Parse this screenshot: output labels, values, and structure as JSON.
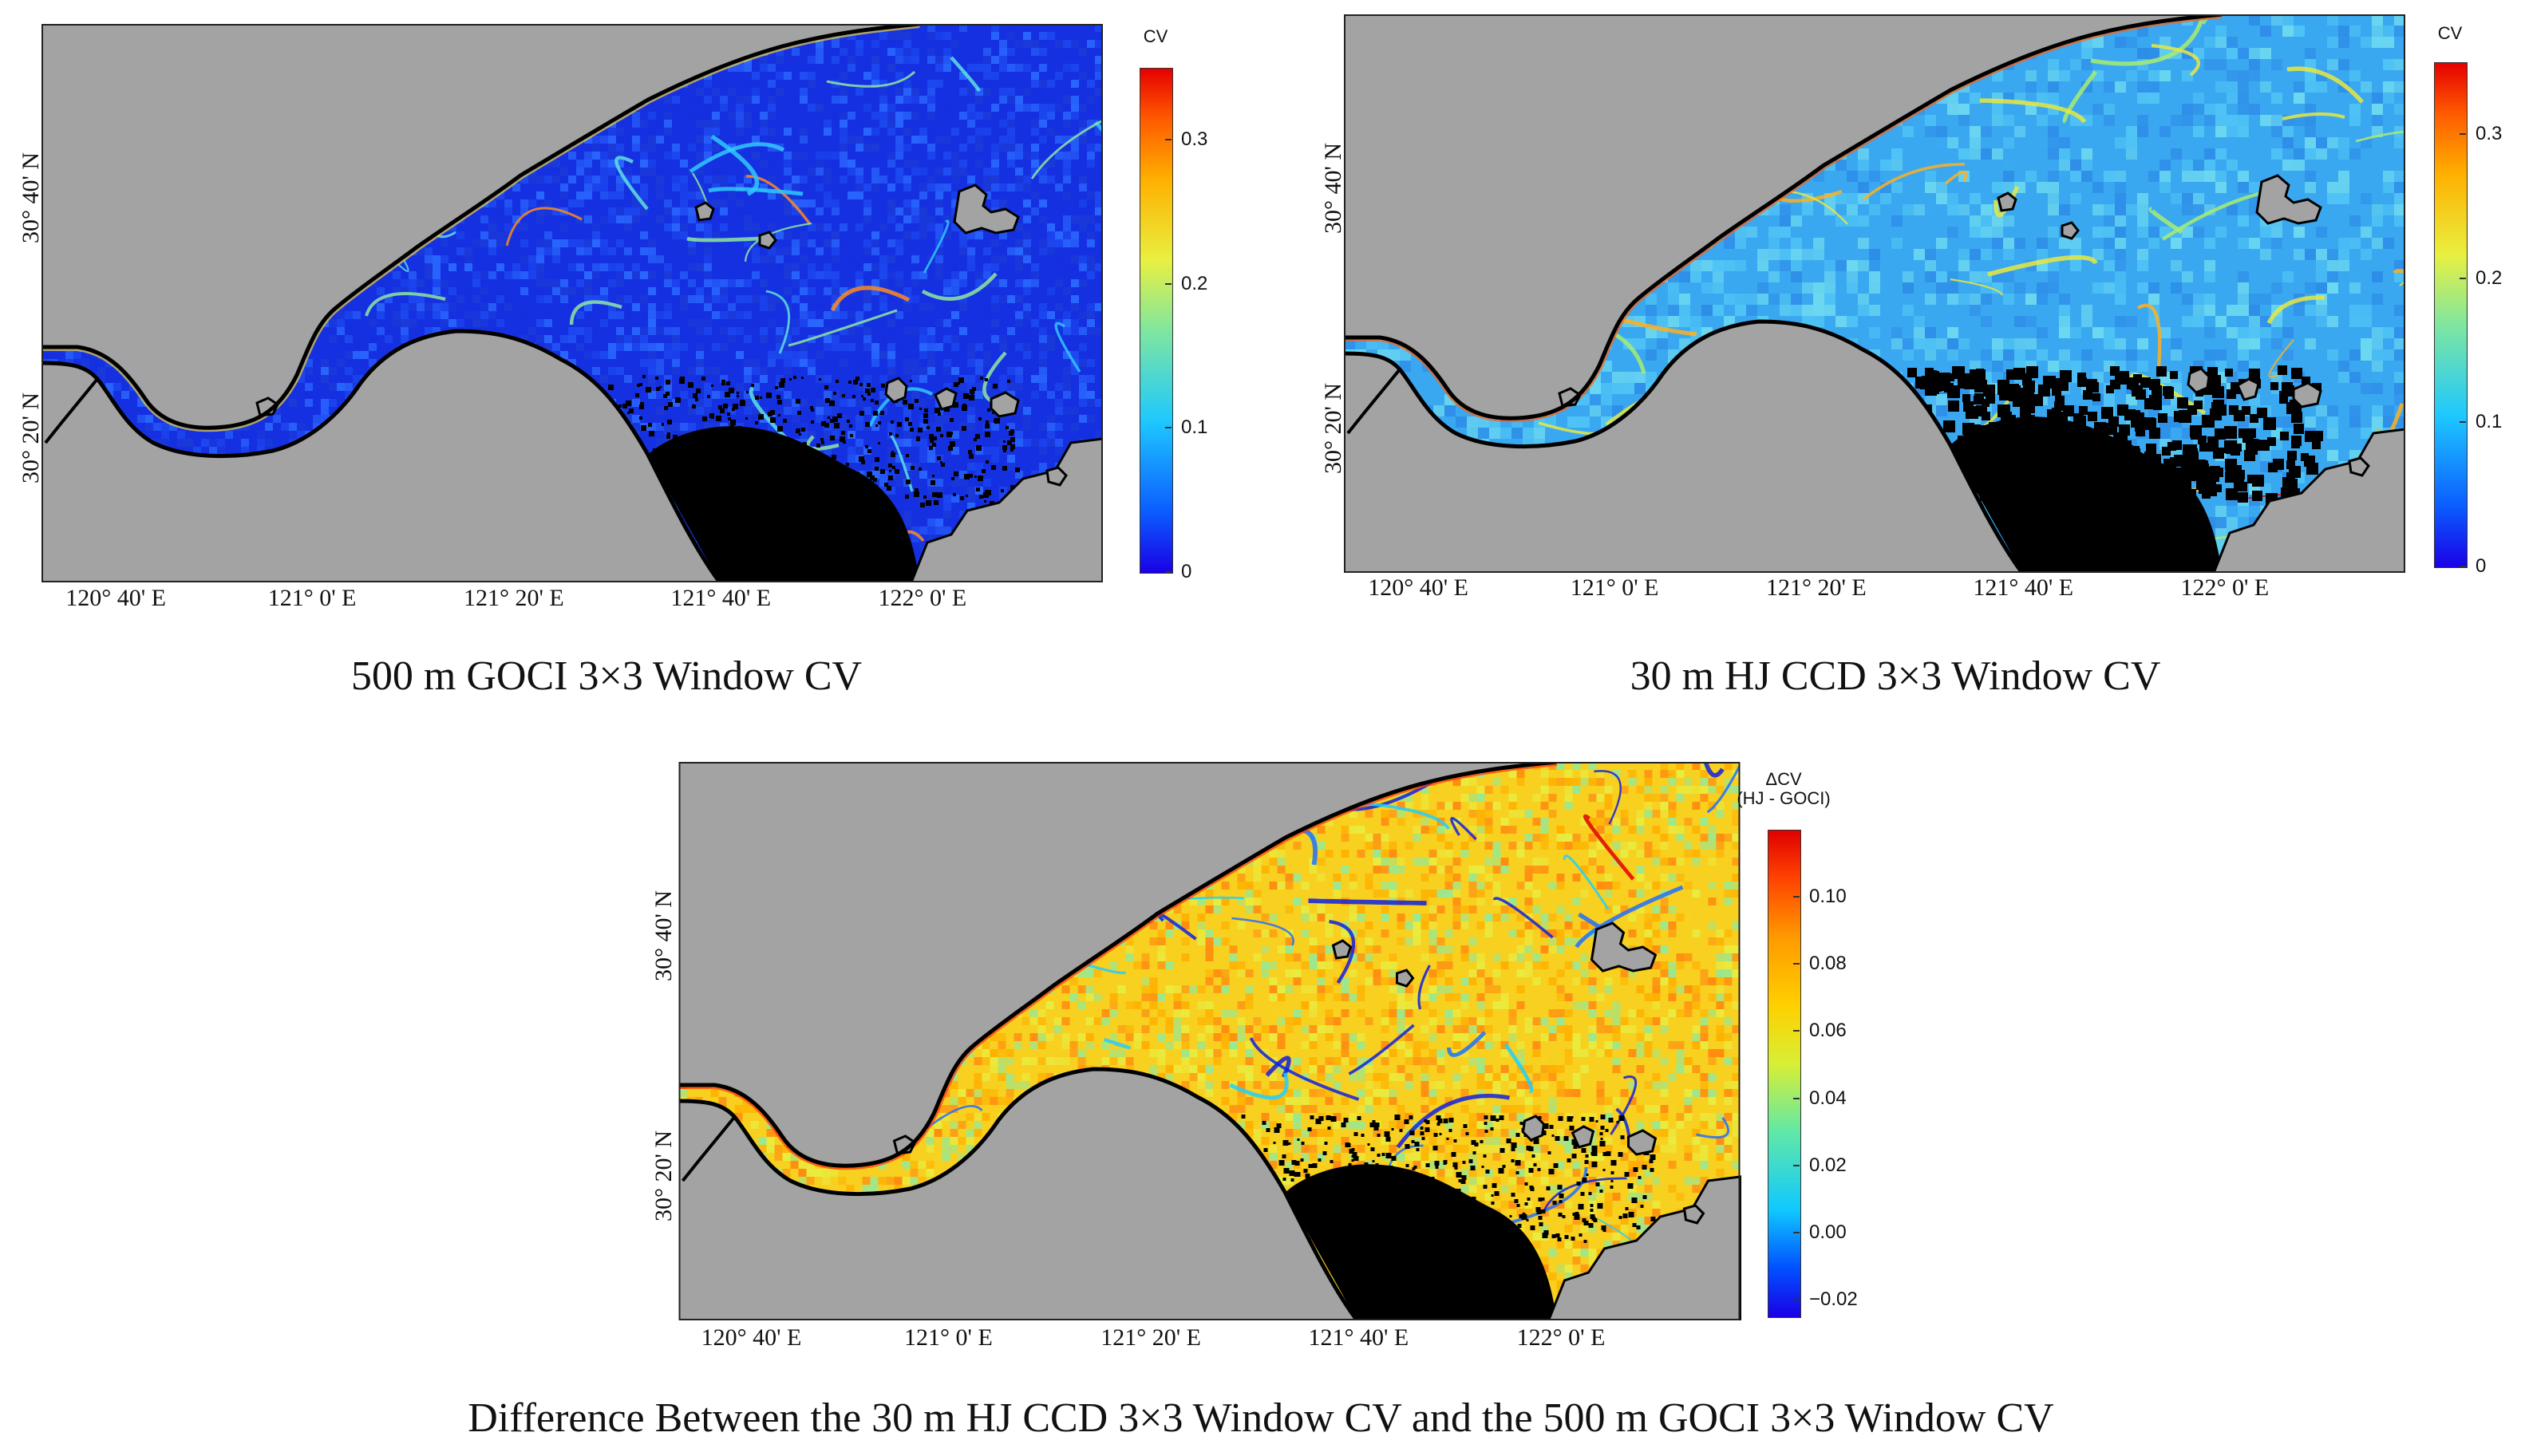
{
  "panels": [
    {
      "id": "goci",
      "caption": "500 m GOCI 3×3 Window CV",
      "colorbar": {
        "title": "CV",
        "ticks": [
          "0.3",
          "0.2",
          "0.1",
          "0"
        ],
        "tick_values": [
          0.3,
          0.2,
          0.1,
          0
        ],
        "range": [
          0,
          0.35
        ]
      },
      "x_ticks": [
        "120° 40' E",
        "121° 0' E",
        "121° 20' E",
        "121° 40' E",
        "122° 0' E"
      ],
      "y_ticks": [
        "30° 40' N",
        "30° 20' N"
      ],
      "water_palette": [
        "#1530e0",
        "#1d48f0",
        "#2a66ff",
        "#1b3ad8"
      ],
      "streak_palette": [
        "#30c8ff",
        "#5ee0e0",
        "#8ee8a0",
        "#f0d040",
        "#ff8a20"
      ]
    },
    {
      "id": "hj",
      "caption": "30 m HJ CCD 3×3 Window CV",
      "colorbar": {
        "title": "CV",
        "ticks": [
          "0.3",
          "0.2",
          "0.1",
          "0"
        ],
        "tick_values": [
          0.3,
          0.2,
          0.1,
          0
        ],
        "range": [
          0,
          0.35
        ]
      },
      "x_ticks": [
        "120° 40' E",
        "121° 0' E",
        "121° 20' E",
        "121° 40' E",
        "122° 0' E"
      ],
      "y_ticks": [
        "30° 40' N",
        "30° 20' N"
      ],
      "water_palette": [
        "#3aa8f0",
        "#50c4f5",
        "#6cd8f0",
        "#2e8ee8"
      ],
      "streak_palette": [
        "#a8ec70",
        "#e8e840",
        "#ffb020",
        "#ff6010",
        "#d01010"
      ]
    },
    {
      "id": "diff",
      "caption": "Difference Between the 30 m HJ CCD 3×3 Window CV and the 500 m GOCI 3×3 Window CV",
      "colorbar": {
        "title": "ΔCV",
        "subtitle": "(HJ - GOCI)",
        "ticks": [
          "0.10",
          "0.08",
          "0.06",
          "0.04",
          "0.02",
          "0.00",
          "−0.02"
        ],
        "tick_values": [
          0.1,
          0.08,
          0.06,
          0.04,
          0.02,
          0.0,
          -0.02
        ],
        "range": [
          -0.025,
          0.12
        ]
      },
      "x_ticks": [
        "120° 40' E",
        "121° 0' E",
        "121° 20' E",
        "121° 40' E",
        "122° 0' E"
      ],
      "y_ticks": [
        "30° 40' N",
        "30° 20' N"
      ],
      "water_palette": [
        "#f8d020",
        "#ffb000",
        "#e8ec40",
        "#ff8c10",
        "#9ae890"
      ],
      "streak_palette": [
        "#1020e0",
        "#2070ff",
        "#20d0ff",
        "#ff3010",
        "#e00000"
      ]
    }
  ],
  "colors": {
    "land": "#a3a3a3",
    "nodata": "#000000",
    "coast": "#000000"
  }
}
